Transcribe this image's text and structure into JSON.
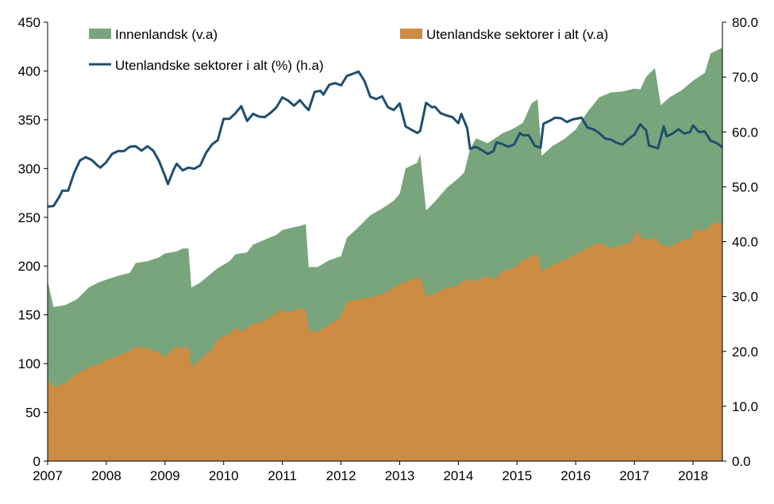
{
  "chart_data": {
    "type": "area",
    "legend": [
      {
        "label": "Innenlandsk (v.a)",
        "color": "#78a57c",
        "kind": "area"
      },
      {
        "label": "Utenlandske sektorer i alt (v.a)",
        "color": "#cc8c44",
        "kind": "area"
      },
      {
        "label": "Utenlandske sektorer i alt (%) (h.a)",
        "color": "#1f4e6e",
        "kind": "line"
      }
    ],
    "x_ticks": [
      "2007",
      "2008",
      "2009",
      "2010",
      "2011",
      "2012",
      "2013",
      "2014",
      "2015",
      "2016",
      "2017",
      "2018"
    ],
    "x_range": [
      2007.0,
      2018.5
    ],
    "y_left": {
      "min": 0,
      "max": 450,
      "ticks": [
        "0",
        "50",
        "100",
        "150",
        "200",
        "250",
        "300",
        "350",
        "400",
        "450"
      ]
    },
    "y_right": {
      "min": 0,
      "max": 80,
      "ticks": [
        "0.0",
        "10.0",
        "20.0",
        "30.0",
        "40.0",
        "50.0",
        "60.0",
        "70.0",
        "80.0"
      ]
    },
    "grid": false,
    "series": [
      {
        "name": "Utenlandske sektorer i alt (v.a)",
        "axis": "left",
        "points": [
          [
            2007.0,
            84
          ],
          [
            2007.1,
            76
          ],
          [
            2007.3,
            80
          ],
          [
            2007.5,
            90
          ],
          [
            2007.7,
            96
          ],
          [
            2007.9,
            100
          ],
          [
            2008.0,
            104
          ],
          [
            2008.2,
            108
          ],
          [
            2008.4,
            113
          ],
          [
            2008.5,
            117
          ],
          [
            2008.7,
            116
          ],
          [
            2008.9,
            111
          ],
          [
            2009.0,
            107
          ],
          [
            2009.1,
            113
          ],
          [
            2009.2,
            118
          ],
          [
            2009.3,
            115
          ],
          [
            2009.4,
            118
          ],
          [
            2009.45,
            96
          ],
          [
            2009.6,
            104
          ],
          [
            2009.8,
            115
          ],
          [
            2009.9,
            125
          ],
          [
            2010.1,
            131
          ],
          [
            2010.2,
            137
          ],
          [
            2010.3,
            133
          ],
          [
            2010.5,
            141
          ],
          [
            2010.7,
            144
          ],
          [
            2010.9,
            152
          ],
          [
            2011.0,
            155
          ],
          [
            2011.1,
            152
          ],
          [
            2011.3,
            157
          ],
          [
            2011.4,
            154
          ],
          [
            2011.45,
            134
          ],
          [
            2011.6,
            133
          ],
          [
            2011.8,
            140
          ],
          [
            2012.0,
            148
          ],
          [
            2012.1,
            163
          ],
          [
            2012.3,
            166
          ],
          [
            2012.5,
            168
          ],
          [
            2012.7,
            171
          ],
          [
            2012.9,
            178
          ],
          [
            2013.0,
            182
          ],
          [
            2013.2,
            186
          ],
          [
            2013.35,
            189
          ],
          [
            2013.45,
            168
          ],
          [
            2013.6,
            172
          ],
          [
            2013.8,
            178
          ],
          [
            2014.0,
            180
          ],
          [
            2014.1,
            186
          ],
          [
            2014.3,
            185
          ],
          [
            2014.5,
            190
          ],
          [
            2014.6,
            186
          ],
          [
            2014.75,
            195
          ],
          [
            2014.9,
            197
          ],
          [
            2015.0,
            201
          ],
          [
            2015.1,
            206
          ],
          [
            2015.25,
            210
          ],
          [
            2015.35,
            212
          ],
          [
            2015.42,
            195
          ],
          [
            2015.6,
            201
          ],
          [
            2015.8,
            206
          ],
          [
            2016.0,
            212
          ],
          [
            2016.2,
            219
          ],
          [
            2016.4,
            224
          ],
          [
            2016.6,
            218
          ],
          [
            2016.8,
            222
          ],
          [
            2016.95,
            225
          ],
          [
            2017.05,
            236
          ],
          [
            2017.15,
            227
          ],
          [
            2017.35,
            229
          ],
          [
            2017.45,
            222
          ],
          [
            2017.6,
            220
          ],
          [
            2017.8,
            226
          ],
          [
            2017.95,
            228
          ],
          [
            2018.05,
            238
          ],
          [
            2018.2,
            236
          ],
          [
            2018.35,
            245
          ],
          [
            2018.5,
            244
          ]
        ]
      },
      {
        "name": "Innenlandsk (v.a)",
        "axis": "left",
        "points": [
          [
            2007.0,
            185
          ],
          [
            2007.1,
            158
          ],
          [
            2007.3,
            160
          ],
          [
            2007.5,
            166
          ],
          [
            2007.7,
            178
          ],
          [
            2007.9,
            184
          ],
          [
            2008.0,
            186
          ],
          [
            2008.2,
            190
          ],
          [
            2008.4,
            193
          ],
          [
            2008.5,
            203
          ],
          [
            2008.7,
            205
          ],
          [
            2008.9,
            209
          ],
          [
            2009.0,
            213
          ],
          [
            2009.2,
            215
          ],
          [
            2009.3,
            218
          ],
          [
            2009.4,
            218
          ],
          [
            2009.45,
            178
          ],
          [
            2009.6,
            183
          ],
          [
            2009.8,
            193
          ],
          [
            2009.9,
            198
          ],
          [
            2010.1,
            205
          ],
          [
            2010.2,
            212
          ],
          [
            2010.4,
            214
          ],
          [
            2010.5,
            222
          ],
          [
            2010.7,
            227
          ],
          [
            2010.9,
            232
          ],
          [
            2011.0,
            237
          ],
          [
            2011.2,
            240
          ],
          [
            2011.3,
            241
          ],
          [
            2011.4,
            243
          ],
          [
            2011.45,
            199
          ],
          [
            2011.6,
            199
          ],
          [
            2011.8,
            206
          ],
          [
            2012.0,
            210
          ],
          [
            2012.1,
            229
          ],
          [
            2012.3,
            240
          ],
          [
            2012.5,
            252
          ],
          [
            2012.7,
            259
          ],
          [
            2012.9,
            267
          ],
          [
            2013.0,
            274
          ],
          [
            2013.1,
            300
          ],
          [
            2013.3,
            306
          ],
          [
            2013.35,
            315
          ],
          [
            2013.45,
            257
          ],
          [
            2013.6,
            266
          ],
          [
            2013.8,
            280
          ],
          [
            2014.0,
            290
          ],
          [
            2014.1,
            296
          ],
          [
            2014.2,
            320
          ],
          [
            2014.3,
            331
          ],
          [
            2014.5,
            326
          ],
          [
            2014.75,
            336
          ],
          [
            2014.9,
            340
          ],
          [
            2015.0,
            343
          ],
          [
            2015.1,
            347
          ],
          [
            2015.25,
            367
          ],
          [
            2015.35,
            371
          ],
          [
            2015.42,
            313
          ],
          [
            2015.6,
            323
          ],
          [
            2015.8,
            330
          ],
          [
            2016.0,
            340
          ],
          [
            2016.2,
            358
          ],
          [
            2016.4,
            373
          ],
          [
            2016.6,
            378
          ],
          [
            2016.8,
            379
          ],
          [
            2017.0,
            382
          ],
          [
            2017.1,
            381
          ],
          [
            2017.2,
            394
          ],
          [
            2017.35,
            403
          ],
          [
            2017.45,
            365
          ],
          [
            2017.6,
            373
          ],
          [
            2017.8,
            380
          ],
          [
            2018.0,
            390
          ],
          [
            2018.2,
            398
          ],
          [
            2018.3,
            418
          ],
          [
            2018.5,
            424
          ]
        ]
      },
      {
        "name": "Utenlandske sektorer i alt (%) (h.a)",
        "axis": "right",
        "points": [
          [
            2007.0,
            46.4
          ],
          [
            2007.1,
            46.5
          ],
          [
            2007.2,
            48.2
          ],
          [
            2007.25,
            49.3
          ],
          [
            2007.35,
            49.3
          ],
          [
            2007.45,
            52.5
          ],
          [
            2007.55,
            54.8
          ],
          [
            2007.65,
            55.4
          ],
          [
            2007.75,
            54.9
          ],
          [
            2007.85,
            53.9
          ],
          [
            2007.9,
            53.5
          ],
          [
            2008.0,
            54.5
          ],
          [
            2008.1,
            56.0
          ],
          [
            2008.2,
            56.5
          ],
          [
            2008.3,
            56.5
          ],
          [
            2008.4,
            57.3
          ],
          [
            2008.5,
            57.4
          ],
          [
            2008.6,
            56.6
          ],
          [
            2008.7,
            57.4
          ],
          [
            2008.8,
            56.6
          ],
          [
            2008.9,
            54.7
          ],
          [
            2009.0,
            52.0
          ],
          [
            2009.05,
            50.5
          ],
          [
            2009.15,
            53.2
          ],
          [
            2009.2,
            54.2
          ],
          [
            2009.3,
            53.0
          ],
          [
            2009.4,
            53.5
          ],
          [
            2009.5,
            53.3
          ],
          [
            2009.6,
            53.9
          ],
          [
            2009.7,
            56.2
          ],
          [
            2009.8,
            57.7
          ],
          [
            2009.9,
            58.5
          ],
          [
            2010.0,
            62.4
          ],
          [
            2010.1,
            62.4
          ],
          [
            2010.2,
            63.4
          ],
          [
            2010.3,
            64.7
          ],
          [
            2010.4,
            62.0
          ],
          [
            2010.5,
            63.3
          ],
          [
            2010.6,
            62.8
          ],
          [
            2010.7,
            62.7
          ],
          [
            2010.8,
            63.5
          ],
          [
            2010.9,
            64.5
          ],
          [
            2011.0,
            66.3
          ],
          [
            2011.1,
            65.7
          ],
          [
            2011.2,
            64.8
          ],
          [
            2011.3,
            65.8
          ],
          [
            2011.4,
            64.5
          ],
          [
            2011.45,
            64.0
          ],
          [
            2011.55,
            67.3
          ],
          [
            2011.65,
            67.5
          ],
          [
            2011.7,
            66.8
          ],
          [
            2011.8,
            68.6
          ],
          [
            2011.9,
            68.9
          ],
          [
            2012.0,
            68.5
          ],
          [
            2012.1,
            70.2
          ],
          [
            2012.2,
            70.6
          ],
          [
            2012.3,
            71.0
          ],
          [
            2012.4,
            69.3
          ],
          [
            2012.5,
            66.4
          ],
          [
            2012.6,
            66.0
          ],
          [
            2012.7,
            66.5
          ],
          [
            2012.8,
            64.5
          ],
          [
            2012.9,
            64.0
          ],
          [
            2013.0,
            65.2
          ],
          [
            2013.1,
            61.0
          ],
          [
            2013.2,
            60.4
          ],
          [
            2013.3,
            59.8
          ],
          [
            2013.35,
            60.2
          ],
          [
            2013.45,
            65.3
          ],
          [
            2013.55,
            64.5
          ],
          [
            2013.6,
            64.6
          ],
          [
            2013.7,
            63.4
          ],
          [
            2013.8,
            63.0
          ],
          [
            2013.9,
            62.7
          ],
          [
            2014.0,
            61.6
          ],
          [
            2014.05,
            63.3
          ],
          [
            2014.15,
            60.7
          ],
          [
            2014.2,
            56.9
          ],
          [
            2014.3,
            57.3
          ],
          [
            2014.4,
            56.7
          ],
          [
            2014.5,
            56.0
          ],
          [
            2014.6,
            56.5
          ],
          [
            2014.65,
            58.1
          ],
          [
            2014.75,
            57.8
          ],
          [
            2014.85,
            57.3
          ],
          [
            2014.95,
            57.7
          ],
          [
            2015.05,
            59.8
          ],
          [
            2015.1,
            59.4
          ],
          [
            2015.2,
            59.4
          ],
          [
            2015.3,
            57.5
          ],
          [
            2015.4,
            57.1
          ],
          [
            2015.45,
            61.5
          ],
          [
            2015.55,
            62.0
          ],
          [
            2015.65,
            62.6
          ],
          [
            2015.75,
            62.5
          ],
          [
            2015.85,
            61.8
          ],
          [
            2015.95,
            62.3
          ],
          [
            2016.05,
            62.5
          ],
          [
            2016.1,
            62.6
          ],
          [
            2016.2,
            60.8
          ],
          [
            2016.3,
            60.5
          ],
          [
            2016.4,
            59.8
          ],
          [
            2016.5,
            58.8
          ],
          [
            2016.6,
            58.6
          ],
          [
            2016.7,
            58.0
          ],
          [
            2016.8,
            57.7
          ],
          [
            2016.9,
            58.7
          ],
          [
            2017.0,
            59.5
          ],
          [
            2017.1,
            61.4
          ],
          [
            2017.2,
            60.3
          ],
          [
            2017.25,
            57.5
          ],
          [
            2017.35,
            57.2
          ],
          [
            2017.4,
            57.0
          ],
          [
            2017.5,
            61.0
          ],
          [
            2017.55,
            59.2
          ],
          [
            2017.65,
            59.7
          ],
          [
            2017.75,
            60.5
          ],
          [
            2017.85,
            59.7
          ],
          [
            2017.95,
            60.0
          ],
          [
            2018.0,
            61.2
          ],
          [
            2018.1,
            60.0
          ],
          [
            2018.2,
            60.1
          ],
          [
            2018.3,
            58.4
          ],
          [
            2018.4,
            58.0
          ],
          [
            2018.5,
            57.2
          ]
        ]
      }
    ]
  }
}
